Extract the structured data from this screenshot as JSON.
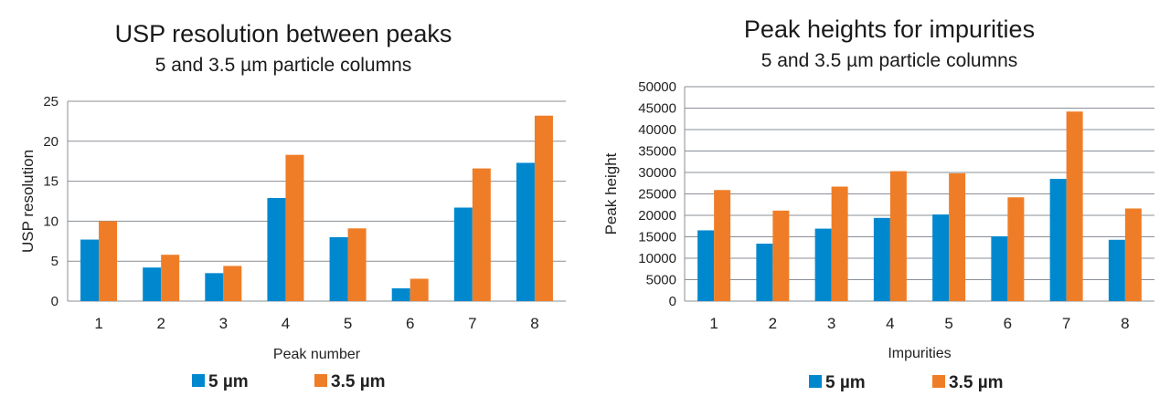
{
  "colors": {
    "series_5um": "#0088cf",
    "series_3_5um": "#ef7d27"
  },
  "chart_data": [
    {
      "type": "bar",
      "title": "USP resolution between peaks",
      "subtitle": "5 and 3.5 µm particle columns",
      "xlabel": "Peak number",
      "ylabel": "USP resolution",
      "ylim": [
        0,
        25
      ],
      "yticks": [
        "0",
        "5",
        "10",
        "15",
        "20",
        "25"
      ],
      "grid": true,
      "categories": [
        "1",
        "2",
        "3",
        "4",
        "5",
        "6",
        "7",
        "8"
      ],
      "series": [
        {
          "name": "5 µm",
          "values": [
            7.7,
            4.2,
            3.5,
            12.9,
            8.0,
            1.6,
            11.7,
            17.3
          ]
        },
        {
          "name": "3.5 µm",
          "values": [
            10.0,
            5.8,
            4.4,
            18.3,
            9.1,
            2.8,
            16.6,
            23.2
          ]
        }
      ],
      "legend": [
        "5 µm",
        "3.5 µm"
      ]
    },
    {
      "type": "bar",
      "title": "Peak heights for impurities",
      "subtitle": "5 and 3.5 µm particle columns",
      "xlabel": "Impurities",
      "ylabel": "Peak height",
      "ylim": [
        0,
        50000
      ],
      "yticks": [
        "0",
        "5000",
        "10000",
        "15000",
        "20000",
        "25000",
        "30000",
        "35000",
        "40000",
        "45000",
        "50000"
      ],
      "grid": true,
      "categories": [
        "1",
        "2",
        "3",
        "4",
        "5",
        "6",
        "7",
        "8"
      ],
      "series": [
        {
          "name": "5 µm",
          "values": [
            16500,
            13400,
            16900,
            19400,
            20200,
            15100,
            28500,
            14300
          ]
        },
        {
          "name": "3.5 µm",
          "values": [
            25900,
            21100,
            26700,
            30300,
            29800,
            24200,
            44200,
            21600
          ]
        }
      ],
      "legend": [
        "5 µm",
        "3.5 µm"
      ]
    }
  ]
}
